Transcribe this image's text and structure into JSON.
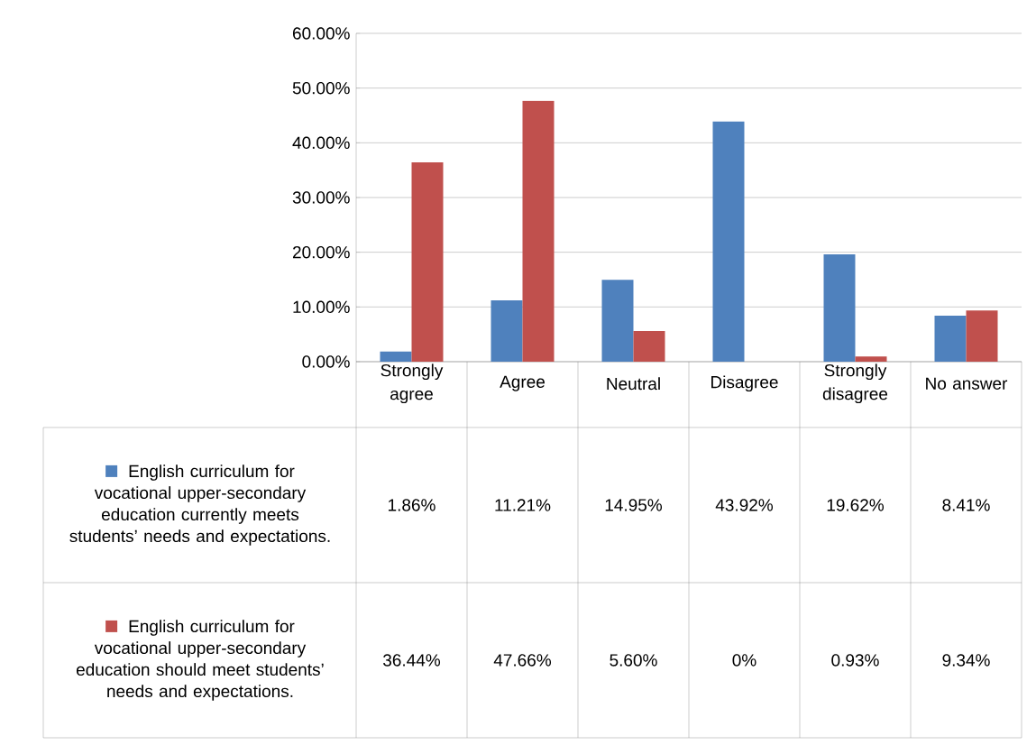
{
  "chart_data": {
    "type": "bar",
    "categories": [
      "Strongly agree",
      "Agree",
      "Neutral",
      "Disagree",
      "Strongly disagree",
      "No answer"
    ],
    "series": [
      {
        "name": "English curriculum for vocational upper-secondary education currently meets students’ needs and expectations.",
        "color": "#4f81bd",
        "values": [
          1.86,
          11.21,
          14.95,
          43.92,
          19.62,
          8.41
        ],
        "value_labels": [
          "1.86%",
          "11.21%",
          "14.95%",
          "43.92%",
          "19.62%",
          "8.41%"
        ]
      },
      {
        "name": "English curriculum for vocational upper-secondary education should meet students’ needs and expectations.",
        "color": "#c0504d",
        "values": [
          36.44,
          47.66,
          5.6,
          0,
          0.93,
          9.34
        ],
        "value_labels": [
          "36.44%",
          "47.66%",
          "5.60%",
          "0%",
          "0.93%",
          "9.34%"
        ]
      }
    ],
    "ylim": [
      0,
      60
    ],
    "yticks": [
      {
        "value": 0,
        "label": "0.00%"
      },
      {
        "value": 10,
        "label": "10.00%"
      },
      {
        "value": 20,
        "label": "20.00%"
      },
      {
        "value": 30,
        "label": "30.00%"
      },
      {
        "value": 40,
        "label": "40.00%"
      },
      {
        "value": 50,
        "label": "50.00%"
      },
      {
        "value": 60,
        "label": "60.00%"
      }
    ],
    "grid": "y",
    "legend": "bottom"
  }
}
